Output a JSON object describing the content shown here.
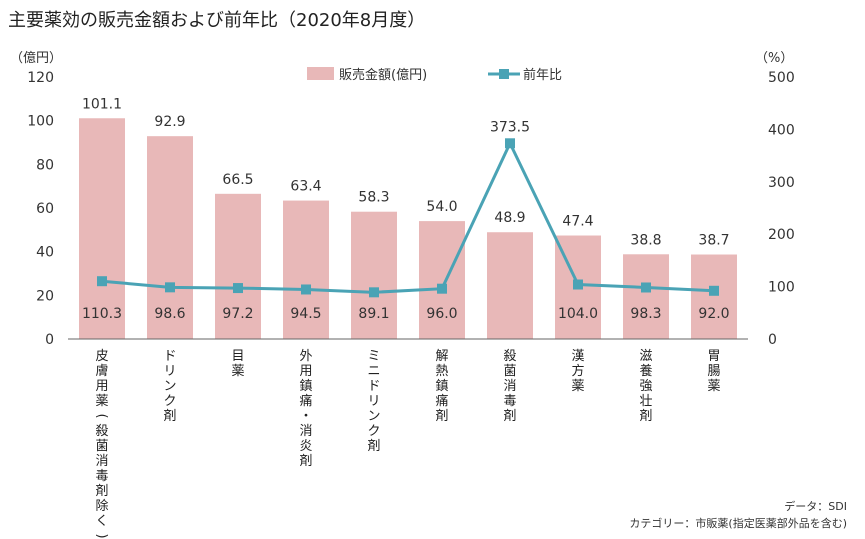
{
  "title": "主要薬効の販売金額および前年比（2020年8月度）",
  "chart_data": {
    "type": "bar+line",
    "categories": [
      "皮膚用薬(殺菌消毒剤除く)",
      "ドリンク剤",
      "目薬",
      "外用鎮痛・消炎剤",
      "ミニドリンク剤",
      "解熱鎮痛剤",
      "殺菌消毒剤",
      "漢方薬",
      "滋養強壮剤",
      "胃腸薬"
    ],
    "series": [
      {
        "name": "販売金額(億円)",
        "type": "bar",
        "axis": "left",
        "color": "#e8b8b8",
        "values": [
          101.1,
          92.9,
          66.5,
          63.4,
          58.3,
          54.0,
          48.9,
          47.4,
          38.8,
          38.7
        ],
        "labels": [
          "101.1",
          "92.9",
          "66.5",
          "63.4",
          "58.3",
          "54.0",
          "48.9",
          "47.4",
          "38.8",
          "38.7"
        ]
      },
      {
        "name": "前年比",
        "type": "line",
        "axis": "right",
        "color": "#4aa3b5",
        "values": [
          110.3,
          98.6,
          97.2,
          94.5,
          89.1,
          96.0,
          373.5,
          104.0,
          98.3,
          92.0
        ],
        "labels": [
          "110.3",
          "98.6",
          "97.2",
          "94.5",
          "89.1",
          "96.0",
          "373.5",
          "104.0",
          "98.3",
          "92.0"
        ]
      }
    ],
    "y_left": {
      "unit": "（億円）",
      "min": 0,
      "max": 120,
      "ticks": [
        0,
        20,
        40,
        60,
        80,
        100,
        120
      ]
    },
    "y_right": {
      "unit": "（%）",
      "min": 0,
      "max": 500,
      "ticks": [
        0,
        100,
        200,
        300,
        400,
        500
      ]
    },
    "legend_position": "top-center",
    "grid": false
  },
  "notes": {
    "data_source": "データ：SDI",
    "category": "カテゴリー：市販薬(指定医薬部外品を含む)"
  }
}
